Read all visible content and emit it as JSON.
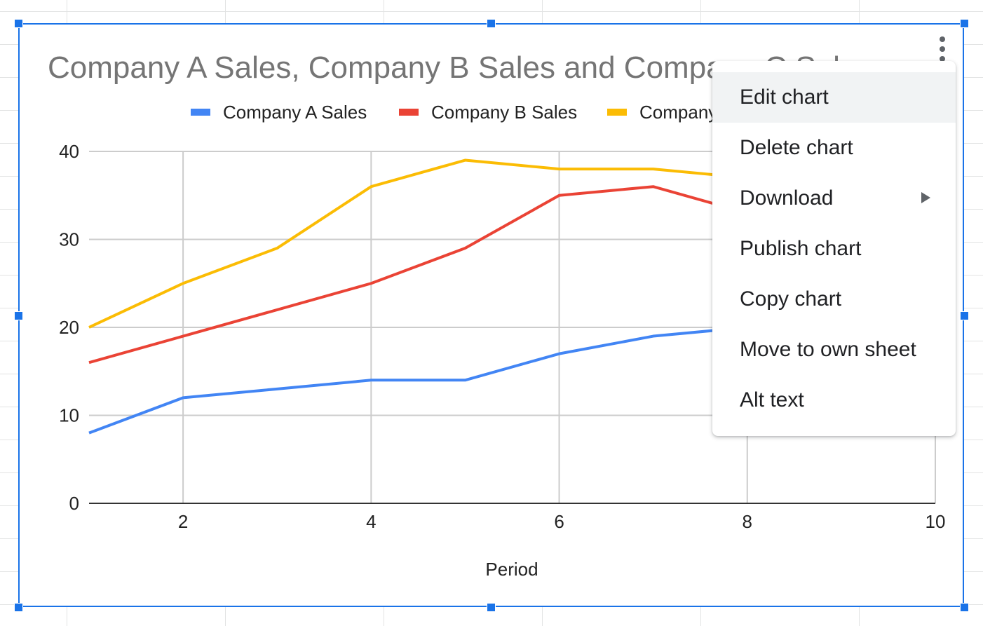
{
  "chart_data": {
    "type": "line",
    "title": "Company A Sales, Company B Sales and Company C Sales",
    "xlabel": "Period",
    "ylabel": "",
    "x": [
      1,
      2,
      3,
      4,
      5,
      6,
      7,
      8,
      9,
      10
    ],
    "xlim": [
      1,
      10
    ],
    "ylim": [
      0,
      40
    ],
    "xticks": [
      2,
      4,
      6,
      8,
      10
    ],
    "yticks": [
      0,
      10,
      20,
      30,
      40
    ],
    "grid": true,
    "legend_position": "top",
    "series": [
      {
        "name": "Company A Sales",
        "color": "#4285f4",
        "values": [
          8,
          12,
          13,
          14,
          14,
          17,
          19,
          20,
          null,
          null
        ]
      },
      {
        "name": "Company B Sales",
        "color": "#ea4335",
        "values": [
          16,
          19,
          22,
          25,
          29,
          35,
          36,
          33,
          null,
          null
        ]
      },
      {
        "name": "Company C Sales",
        "color": "#fbbc04",
        "values": [
          20,
          25,
          29,
          36,
          39,
          38,
          38,
          37,
          null,
          null
        ]
      }
    ]
  },
  "context_menu": {
    "items": [
      {
        "label": "Edit chart",
        "active": true,
        "submenu": false
      },
      {
        "label": "Delete chart",
        "active": false,
        "submenu": false
      },
      {
        "label": "Download",
        "active": false,
        "submenu": true
      },
      {
        "label": "Publish chart",
        "active": false,
        "submenu": false
      },
      {
        "label": "Copy chart",
        "active": false,
        "submenu": false
      },
      {
        "label": "Move to own sheet",
        "active": false,
        "submenu": false
      },
      {
        "label": "Alt text",
        "active": false,
        "submenu": false
      }
    ]
  },
  "colors": {
    "selection": "#1a73e8",
    "gridline": "#cccccc",
    "axis": "#333333",
    "title": "#757575"
  },
  "icons": {
    "more_options": "more-vert-icon",
    "submenu": "arrow-right-icon"
  }
}
